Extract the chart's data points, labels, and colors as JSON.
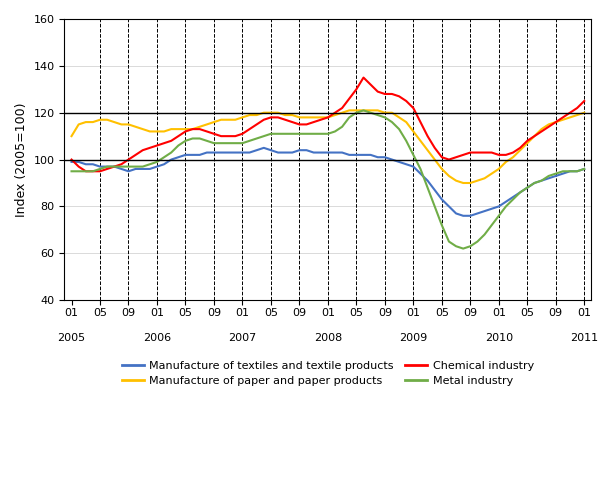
{
  "title": "",
  "ylabel": "Index (2005=100)",
  "ylim": [
    40,
    160
  ],
  "yticks": [
    40,
    60,
    80,
    100,
    120,
    140,
    160
  ],
  "hlines": [
    100,
    120
  ],
  "background_color": "#ffffff",
  "plot_bg_color": "#ffffff",
  "series": {
    "textiles": {
      "label": "Manufacture of textiles and textile products",
      "color": "#4472c4",
      "data": [
        99,
        99,
        98,
        98,
        97,
        97,
        97,
        96,
        95,
        96,
        96,
        96,
        97,
        98,
        100,
        101,
        102,
        102,
        102,
        103,
        103,
        103,
        103,
        103,
        103,
        103,
        104,
        105,
        104,
        103,
        103,
        103,
        104,
        104,
        103,
        103,
        103,
        103,
        103,
        102,
        102,
        102,
        102,
        101,
        101,
        100,
        99,
        98,
        97,
        94,
        91,
        87,
        83,
        80,
        77,
        76,
        76,
        77,
        78,
        79,
        80,
        82,
        84,
        86,
        88,
        90,
        91,
        92,
        93,
        94,
        95,
        95,
        96
      ]
    },
    "paper": {
      "label": "Manufacture of paper and paper products",
      "color": "#ffc000",
      "data": [
        110,
        115,
        116,
        116,
        117,
        117,
        116,
        115,
        115,
        114,
        113,
        112,
        112,
        112,
        113,
        113,
        113,
        113,
        114,
        115,
        116,
        117,
        117,
        117,
        118,
        119,
        119,
        120,
        120,
        120,
        119,
        119,
        118,
        118,
        118,
        118,
        118,
        119,
        120,
        121,
        121,
        121,
        121,
        121,
        120,
        120,
        118,
        116,
        112,
        108,
        104,
        100,
        96,
        93,
        91,
        90,
        90,
        91,
        92,
        94,
        96,
        99,
        101,
        104,
        107,
        110,
        113,
        115,
        116,
        117,
        118,
        119,
        120
      ]
    },
    "chemical": {
      "label": "Chemical industry",
      "color": "#ff0000",
      "data": [
        100,
        97,
        95,
        95,
        95,
        96,
        97,
        98,
        100,
        102,
        104,
        105,
        106,
        107,
        108,
        110,
        112,
        113,
        113,
        112,
        111,
        110,
        110,
        110,
        111,
        113,
        115,
        117,
        118,
        118,
        117,
        116,
        115,
        115,
        116,
        117,
        118,
        120,
        122,
        126,
        130,
        135,
        132,
        129,
        128,
        128,
        127,
        125,
        122,
        116,
        110,
        105,
        101,
        100,
        101,
        102,
        103,
        103,
        103,
        103,
        102,
        102,
        103,
        105,
        108,
        110,
        112,
        114,
        116,
        118,
        120,
        122,
        125
      ]
    },
    "metal": {
      "label": "Metal industry",
      "color": "#70ad47",
      "data": [
        95,
        95,
        95,
        95,
        96,
        97,
        97,
        97,
        97,
        97,
        97,
        98,
        99,
        101,
        103,
        106,
        108,
        109,
        109,
        108,
        107,
        107,
        107,
        107,
        107,
        108,
        109,
        110,
        111,
        111,
        111,
        111,
        111,
        111,
        111,
        111,
        111,
        112,
        114,
        118,
        120,
        121,
        120,
        119,
        118,
        116,
        113,
        108,
        102,
        96,
        88,
        80,
        72,
        65,
        63,
        62,
        63,
        65,
        68,
        72,
        76,
        80,
        83,
        86,
        88,
        90,
        91,
        93,
        94,
        95,
        95,
        95,
        96
      ]
    }
  },
  "x_tick_labels": [
    "01",
    "05",
    "09",
    "01",
    "05",
    "09",
    "01",
    "05",
    "09",
    "01",
    "05",
    "09",
    "01",
    "05",
    "09",
    "01",
    "05",
    "09",
    "01"
  ],
  "x_year_labels": [
    "2005",
    "2006",
    "2007",
    "2008",
    "2009",
    "2010",
    "2011"
  ],
  "x_year_positions": [
    0,
    12,
    24,
    36,
    48,
    60,
    72
  ],
  "x_tick_positions": [
    0,
    4,
    8,
    12,
    16,
    20,
    24,
    28,
    32,
    36,
    40,
    44,
    48,
    52,
    56,
    60,
    64,
    68,
    72
  ],
  "n_points": 73,
  "border_color": "#000000",
  "grid_color": "#000000",
  "tick_label_fontsize": 8,
  "axis_label_fontsize": 9,
  "legend_fontsize": 8
}
